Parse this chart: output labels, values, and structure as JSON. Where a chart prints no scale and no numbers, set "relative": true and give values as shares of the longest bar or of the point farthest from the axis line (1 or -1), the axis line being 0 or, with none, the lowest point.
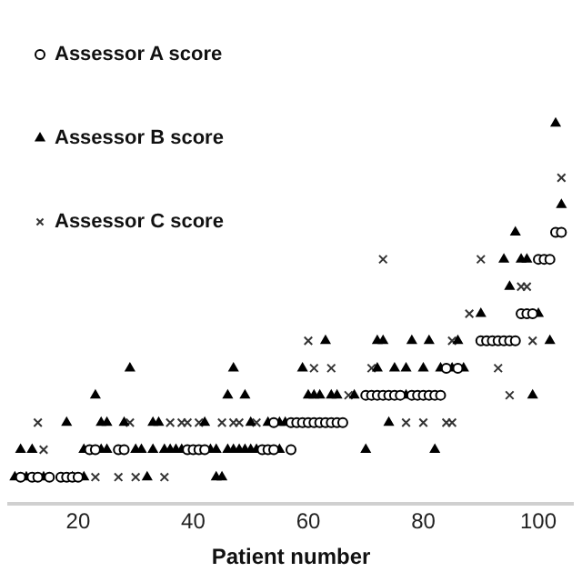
{
  "chart_data": {
    "type": "scatter",
    "xlabel": "Patient number",
    "relative": true,
    "xlim": [
      8,
      106
    ],
    "xticks": [
      20,
      40,
      60,
      80,
      100
    ],
    "tick_labels": "x",
    "grid": false,
    "legend": "top left",
    "series": [
      {
        "name": "Assessor A score",
        "color": "#000000",
        "marker": "circle",
        "x": [
          10,
          12,
          13,
          15,
          17,
          18,
          19,
          20,
          22,
          23,
          27,
          28,
          39,
          40,
          41,
          42,
          52,
          53,
          54,
          57,
          54,
          57,
          58,
          59,
          60,
          61,
          62,
          63,
          64,
          65,
          66,
          70,
          71,
          72,
          73,
          74,
          75,
          76,
          78,
          79,
          80,
          81,
          82,
          83,
          84,
          86,
          90,
          91,
          92,
          93,
          94,
          95,
          96,
          97,
          98,
          99,
          100,
          101,
          102,
          103,
          104
        ],
        "values": [
          0.071,
          0.071,
          0.071,
          0.071,
          0.071,
          0.071,
          0.071,
          0.071,
          0.143,
          0.143,
          0.143,
          0.143,
          0.143,
          0.143,
          0.143,
          0.143,
          0.143,
          0.143,
          0.143,
          0.143,
          0.214,
          0.214,
          0.214,
          0.214,
          0.214,
          0.214,
          0.214,
          0.214,
          0.214,
          0.214,
          0.214,
          0.286,
          0.286,
          0.286,
          0.286,
          0.286,
          0.286,
          0.286,
          0.286,
          0.286,
          0.286,
          0.286,
          0.286,
          0.286,
          0.357,
          0.357,
          0.429,
          0.429,
          0.429,
          0.429,
          0.429,
          0.429,
          0.429,
          0.5,
          0.5,
          0.5,
          0.643,
          0.643,
          0.643,
          0.714,
          0.714
        ]
      },
      {
        "name": "Assessor B score",
        "color": "#000000",
        "marker": "triangle",
        "x": [
          9,
          11,
          14,
          19,
          21,
          32,
          44,
          45,
          10,
          12,
          21,
          24,
          25,
          30,
          31,
          33,
          35,
          36,
          37,
          38,
          43,
          44,
          46,
          47,
          48,
          49,
          50,
          51,
          55,
          70,
          82,
          18,
          24,
          25,
          28,
          33,
          34,
          42,
          50,
          53,
          55,
          56,
          74,
          23,
          46,
          49,
          60,
          61,
          62,
          64,
          65,
          68,
          77,
          99,
          29,
          47,
          59,
          72,
          75,
          77,
          80,
          83,
          85,
          87,
          63,
          72,
          73,
          78,
          81,
          86,
          102,
          90,
          100,
          95,
          94,
          97,
          98,
          96,
          104,
          103
        ],
        "values": [
          0.071,
          0.071,
          0.071,
          0.071,
          0.071,
          0.071,
          0.071,
          0.071,
          0.143,
          0.143,
          0.143,
          0.143,
          0.143,
          0.143,
          0.143,
          0.143,
          0.143,
          0.143,
          0.143,
          0.143,
          0.143,
          0.143,
          0.143,
          0.143,
          0.143,
          0.143,
          0.143,
          0.143,
          0.143,
          0.143,
          0.143,
          0.214,
          0.214,
          0.214,
          0.214,
          0.214,
          0.214,
          0.214,
          0.214,
          0.214,
          0.214,
          0.214,
          0.214,
          0.286,
          0.286,
          0.286,
          0.286,
          0.286,
          0.286,
          0.286,
          0.286,
          0.286,
          0.286,
          0.286,
          0.357,
          0.357,
          0.357,
          0.357,
          0.357,
          0.357,
          0.357,
          0.357,
          0.357,
          0.357,
          0.429,
          0.429,
          0.429,
          0.429,
          0.429,
          0.429,
          0.429,
          0.5,
          0.5,
          0.571,
          0.643,
          0.643,
          0.643,
          0.714,
          0.786,
          1
        ]
      },
      {
        "name": "Assessor C score",
        "color": "#333333",
        "marker": "cross",
        "x": [
          23,
          27,
          30,
          35,
          14,
          13,
          29,
          36,
          38,
          39,
          41,
          45,
          47,
          48,
          51,
          77,
          80,
          84,
          85,
          67,
          95,
          61,
          64,
          71,
          93,
          60,
          85,
          99,
          88,
          97,
          98,
          73,
          90,
          104
        ],
        "values": [
          0.071,
          0.071,
          0.071,
          0.071,
          0.143,
          0.214,
          0.214,
          0.214,
          0.214,
          0.214,
          0.214,
          0.214,
          0.214,
          0.214,
          0.214,
          0.214,
          0.214,
          0.214,
          0.214,
          0.286,
          0.286,
          0.357,
          0.357,
          0.357,
          0.357,
          0.429,
          0.429,
          0.429,
          0.5,
          0.571,
          0.571,
          0.643,
          0.643,
          0.857
        ]
      }
    ]
  }
}
